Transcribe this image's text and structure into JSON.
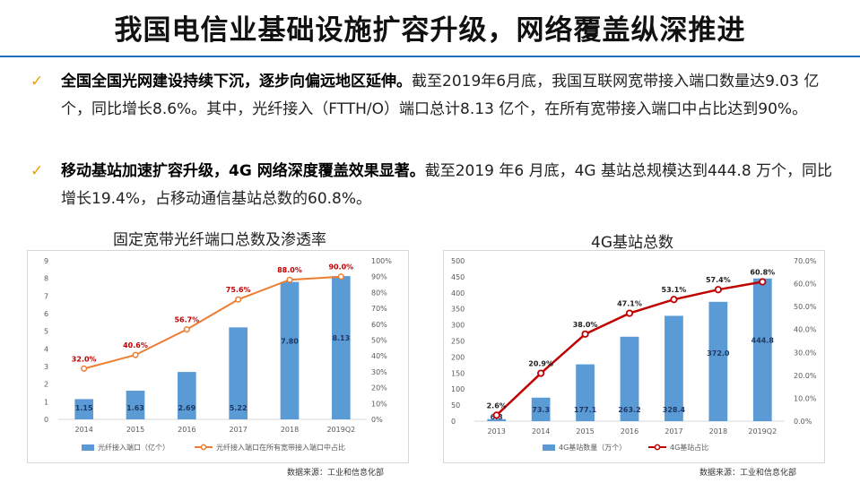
{
  "title": "我国电信业基础设施扩容升级，网络覆盖纵深推进",
  "bullets": [
    {
      "bold": "全国全国光网建设持续下沉，逐步向偏远地区延伸。",
      "text": "截至2019年6月底，我国互联网宽带接入端口数量达9.03 亿个，同比增长8.6%。其中，光纤接入（FTTH/O）端口总计8.13 亿个，在所有宽带接入端口中占比达到90%。"
    },
    {
      "bold": "移动基站加速扩容升级，4G 网络深度覆盖效果显著。",
      "text": "截至2019 年6 月底，4G 基站总规模达到444.8 万个，同比增长19.4%，占移动通信基站总数的60.8%。"
    }
  ],
  "colors": {
    "bar": "#5b9bd5",
    "line_left": "#ed7d31",
    "line_right": "#c00000",
    "rule": "#1f6fbf",
    "check": "#f0a000"
  },
  "chart_data": [
    {
      "type": "bar",
      "title": "固定宽带光纤端口总数及渗透率",
      "categories": [
        "2014",
        "2015",
        "2016",
        "2017",
        "2018",
        "2019Q2"
      ],
      "series": [
        {
          "name": "光纤接入端口（亿个）",
          "type": "bar",
          "axis": "left",
          "values": [
            1.15,
            1.63,
            2.69,
            5.22,
            7.8,
            8.13
          ],
          "labels": [
            "1.15",
            "1.63",
            "2.69",
            "5.22",
            "7.80",
            "8.13"
          ]
        },
        {
          "name": "光纤接入端口在所有宽带接入端口中占比",
          "type": "line",
          "axis": "right",
          "values": [
            32.0,
            40.6,
            56.7,
            75.6,
            88.0,
            90.0
          ],
          "labels": [
            "32.0%",
            "40.6%",
            "56.7%",
            "75.6%",
            "88.0%",
            "90.0%"
          ]
        }
      ],
      "left_axis": {
        "min": 0,
        "max": 9,
        "ticks": [
          "0",
          "1",
          "2",
          "3",
          "4",
          "5",
          "6",
          "7",
          "8",
          "9"
        ]
      },
      "right_axis": {
        "min": 0,
        "max": 100,
        "ticks": [
          "0%",
          "10%",
          "20%",
          "30%",
          "40%",
          "50%",
          "60%",
          "70%",
          "80%",
          "90%",
          "100%"
        ]
      },
      "legend": "bottom",
      "grid": false,
      "source": "数据来源：工业和信息化部"
    },
    {
      "type": "bar",
      "title": "4G基站总数",
      "categories": [
        "2013",
        "2014",
        "2015",
        "2016",
        "2017",
        "2018",
        "2019Q2"
      ],
      "series": [
        {
          "name": "4G基站数量（万个）",
          "type": "bar",
          "axis": "left",
          "values": [
            6.3,
            73.3,
            177.1,
            263.2,
            328.4,
            372.0,
            444.8
          ],
          "labels": [
            "6.3",
            "73.3",
            "177.1",
            "263.2",
            "328.4",
            "372.0",
            "444.8"
          ]
        },
        {
          "name": "4G基站占比",
          "type": "line",
          "axis": "right",
          "values": [
            2.6,
            20.9,
            38.0,
            47.1,
            53.1,
            57.4,
            60.8
          ],
          "labels": [
            "2.6%",
            "20.9%",
            "38.0%",
            "47.1%",
            "53.1%",
            "57.4%",
            "60.8%"
          ]
        }
      ],
      "left_axis": {
        "min": 0,
        "max": 500,
        "ticks": [
          "0",
          "50",
          "100",
          "150",
          "200",
          "250",
          "300",
          "350",
          "400",
          "450",
          "500"
        ]
      },
      "right_axis": {
        "min": 0,
        "max": 70,
        "ticks": [
          "0.0%",
          "10.0%",
          "20.0%",
          "30.0%",
          "40.0%",
          "50.0%",
          "60.0%",
          "70.0%"
        ]
      },
      "legend": "bottom",
      "grid": false,
      "source": "数据来源：工业和信息化部"
    }
  ]
}
